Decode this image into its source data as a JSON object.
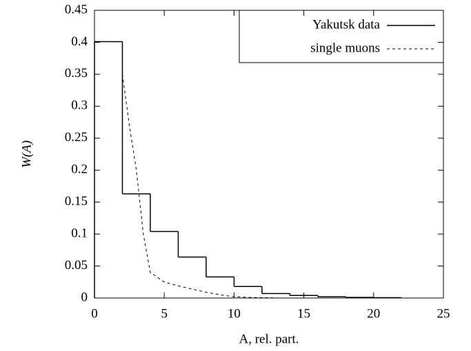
{
  "chart_data": {
    "type": "histogram",
    "x_label": "A, rel. part.",
    "y_label": "W(A)",
    "bins": [
      0,
      2,
      4,
      6,
      8,
      10,
      12,
      14,
      16,
      18,
      20,
      22
    ],
    "series": [
      {
        "name": "Yakutsk data",
        "color": "#000000",
        "line_style": "solid",
        "values": [
          0.401,
          0.163,
          0.104,
          0.064,
          0.033,
          0.018,
          0.007,
          0.004,
          0.002,
          0.001,
          0.0005
        ]
      },
      {
        "name": "single muons",
        "color": "#000000",
        "type": "line",
        "line_style": "dashed",
        "x": [
          2,
          2.5,
          3,
          3.5,
          4,
          5,
          6,
          7,
          8,
          9,
          10,
          11,
          12,
          13
        ],
        "values": [
          0.35,
          0.27,
          0.2,
          0.1,
          0.04,
          0.025,
          0.019,
          0.014,
          0.009,
          0.005,
          0.002,
          0.001,
          0.0005,
          0.0002
        ]
      }
    ],
    "xlim": [
      0,
      25
    ],
    "ylim": [
      0,
      0.45
    ],
    "xticks": [
      0,
      5,
      10,
      15,
      20,
      25
    ],
    "yticks": [
      0,
      0.05,
      0.1,
      0.15,
      0.2,
      0.25,
      0.3,
      0.35,
      0.4,
      0.45
    ],
    "legend": "top right"
  }
}
